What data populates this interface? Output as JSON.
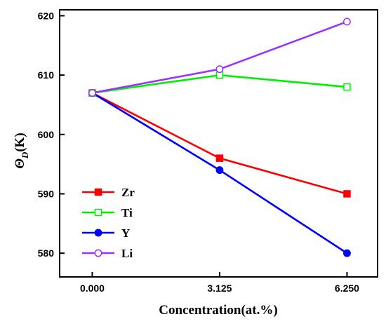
{
  "chart_data": {
    "type": "line",
    "x": [
      0.0,
      3.125,
      6.25
    ],
    "xticks": [
      "0.000",
      "3.125",
      "6.250"
    ],
    "yticks": [
      "580",
      "590",
      "600",
      "610",
      "620"
    ],
    "ylim": [
      576,
      621
    ],
    "xlim": [
      -0.8,
      7.0
    ],
    "xlabel": "Concentration(at.%)",
    "ylabel": "ΘD(K)",
    "ylabel_main": "Θ",
    "ylabel_sub": "D",
    "ylabel_unit": "(K)",
    "grid": false,
    "legend_position": "bottom-left",
    "series": [
      {
        "name": "Zr",
        "values": [
          607,
          596,
          590
        ],
        "color": "#ff0000",
        "marker": "filled-square"
      },
      {
        "name": "Ti",
        "values": [
          607,
          610,
          608
        ],
        "color": "#00ee00",
        "marker": "open-square"
      },
      {
        "name": "Y",
        "values": [
          607,
          594,
          580
        ],
        "color": "#0000ff",
        "marker": "filled-circle"
      },
      {
        "name": "Li",
        "values": [
          607,
          611,
          619
        ],
        "color": "#9933ff",
        "marker": "open-circle"
      }
    ]
  }
}
